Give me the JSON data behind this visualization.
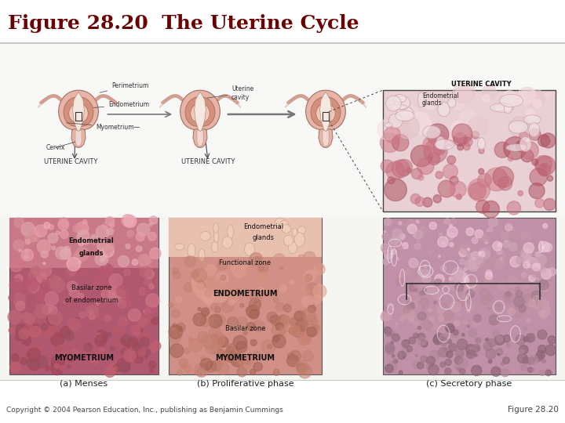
{
  "title": "Figure 28.20  The Uterine Cycle",
  "title_color": "#6B0000",
  "title_fontsize": 18,
  "title_fontweight": "bold",
  "background_color": "#ffffff",
  "separator_color": "#c8c8c8",
  "copyright_text": "Copyright © 2004 Pearson Education, Inc., publishing as Benjamin Cummings",
  "figure_number": "Figure 28.20",
  "copyright_fontsize": 6.5,
  "fig_num_fontsize": 7.5,
  "panel_labels": [
    "(a) Menses",
    "(b) Proliferative phase",
    "(c) Secretory phase"
  ],
  "panel_label_fontsize": 8,
  "main_bg": "#ffffff",
  "diagram_bg": "#f5f5f2",
  "uterus_outer": "#e8b4a8",
  "uterus_inner": "#f0c8b8",
  "uterus_muscle": "#d4907a",
  "uterus_cavity": "#f8e8e0",
  "uterus_edge": "#a07060",
  "arrow_color": "#666666",
  "label_color": "#333333",
  "annotation_fontsize": 6,
  "micro_a_bg": "#c06878",
  "micro_b_bg": "#d4a090",
  "micro_c_bg": "#c898b0",
  "micro_upper_bg": "#e8c0b0"
}
